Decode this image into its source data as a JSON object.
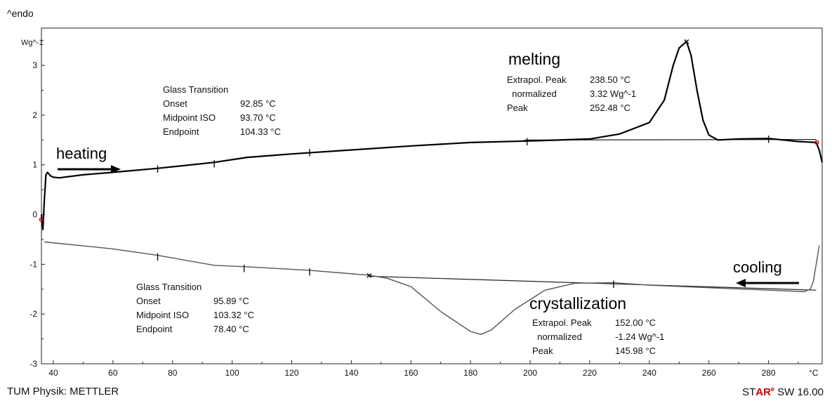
{
  "chart_data": {
    "type": "line",
    "y_axis_label": "^endo",
    "y_unit_label": "Wg^-1",
    "x_unit_label": "°C",
    "xlim": [
      36,
      298
    ],
    "ylim": [
      -3,
      3.75
    ],
    "x_ticks": [
      40,
      60,
      80,
      100,
      120,
      140,
      160,
      180,
      200,
      220,
      240,
      260,
      280
    ],
    "y_ticks": [
      -3,
      -2,
      -1,
      0,
      1,
      2,
      3
    ],
    "series": [
      {
        "name": "heating",
        "x": [
          36,
          36.5,
          37,
          37.5,
          38,
          38.5,
          39,
          40,
          42,
          50,
          60,
          75,
          94,
          105,
          120,
          140,
          160,
          180,
          200,
          220,
          230,
          240,
          245,
          248,
          250,
          252.48,
          254,
          256,
          258,
          260,
          263,
          270,
          280,
          290,
          296,
          297,
          298
        ],
        "y": [
          0,
          -0.3,
          0.3,
          0.8,
          0.85,
          0.82,
          0.78,
          0.75,
          0.74,
          0.8,
          0.85,
          0.93,
          1.05,
          1.15,
          1.22,
          1.3,
          1.38,
          1.45,
          1.48,
          1.52,
          1.62,
          1.85,
          2.3,
          3.0,
          3.35,
          3.48,
          3.2,
          2.5,
          1.9,
          1.6,
          1.5,
          1.52,
          1.53,
          1.47,
          1.45,
          1.3,
          1.05
        ]
      },
      {
        "name": "cooling",
        "x": [
          37,
          60,
          75,
          94,
          105,
          126,
          146,
          152,
          160,
          170,
          180,
          183.5,
          187,
          195,
          205,
          215,
          228,
          240,
          260,
          280,
          292,
          294,
          295,
          296,
          297
        ],
        "y": [
          -0.55,
          -0.69,
          -0.82,
          -1.02,
          -1.05,
          -1.12,
          -1.22,
          -1.28,
          -1.45,
          -1.95,
          -2.35,
          -2.41,
          -2.32,
          -1.9,
          -1.52,
          -1.38,
          -1.37,
          -1.42,
          -1.47,
          -1.52,
          -1.55,
          -1.5,
          -1.35,
          -1.0,
          -0.62
        ]
      }
    ],
    "baselines": [
      {
        "name": "melting-baseline",
        "x": [
          198,
          296
        ],
        "y": [
          1.5,
          1.51
        ]
      },
      {
        "name": "crystallization-baseline",
        "x": [
          146,
          296
        ],
        "y": [
          -1.24,
          -1.52
        ]
      }
    ],
    "markers": [
      {
        "x": 75,
        "y": 0.95,
        "label": "|"
      },
      {
        "x": 94,
        "y": 1.05,
        "label": "|"
      },
      {
        "x": 126,
        "y": 1.28,
        "label": "|"
      },
      {
        "x": 199,
        "y": 1.5,
        "label": "|"
      },
      {
        "x": 280,
        "y": 1.55,
        "label": "|"
      },
      {
        "x": 75,
        "y": -0.82,
        "label": "|"
      },
      {
        "x": 104,
        "y": -1.05,
        "label": "|"
      },
      {
        "x": 126,
        "y": -1.12,
        "label": "|"
      },
      {
        "x": 228,
        "y": -1.37,
        "label": "|"
      },
      {
        "x": 252.48,
        "y": 3.48,
        "label": "×"
      },
      {
        "x": 146,
        "y": -1.22,
        "label": "×"
      }
    ],
    "annotations": {
      "heating": "heating",
      "cooling": "cooling",
      "melting": "melting",
      "crystallization": "crystallization",
      "glass_heating": {
        "title": "Glass Transition",
        "rows": [
          [
            "Onset",
            "92.85 °C"
          ],
          [
            "Midpoint ISO",
            "93.70 °C"
          ],
          [
            "Endpoint",
            "104.33 °C"
          ]
        ]
      },
      "glass_cooling": {
        "title": "Glass Transition",
        "rows": [
          [
            "Onset",
            "95.89 °C"
          ],
          [
            "Midpoint ISO",
            "103.32 °C"
          ],
          [
            "Endpoint",
            "78.40 °C"
          ]
        ]
      },
      "melting_table": {
        "rows": [
          [
            "Extrapol. Peak",
            "238.50 °C"
          ],
          [
            "  normalized",
            "3.32 Wg^-1"
          ],
          [
            "Peak",
            "252.48 °C"
          ]
        ]
      },
      "cryst_table": {
        "rows": [
          [
            "Extrapol. Peak",
            "152.00 °C"
          ],
          [
            "  normalized",
            "-1.24 Wg^-1"
          ],
          [
            "Peak",
            "145.98 °C"
          ]
        ]
      }
    },
    "grid": false,
    "legend": "none"
  },
  "footer": {
    "left": "TUM Physik: METTLER",
    "right_prefix": "ST",
    "right_accent": "AR",
    "right_mark": "e",
    "right_suffix": " SW 16.00"
  },
  "colors": {
    "heating": "#000000",
    "cooling": "#555555",
    "accent": "#d00000"
  }
}
